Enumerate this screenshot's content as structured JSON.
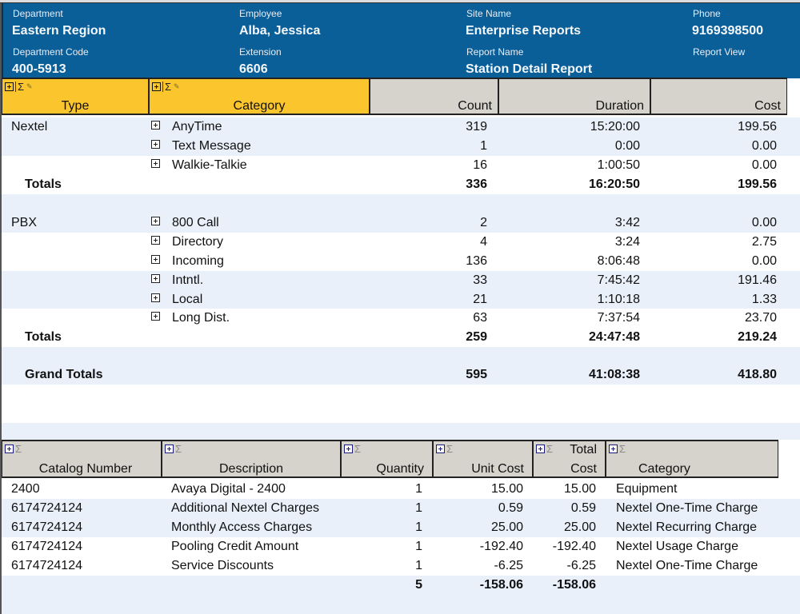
{
  "header": {
    "department_label": "Department",
    "department": "Eastern Region",
    "department_code_label": "Department Code",
    "department_code": "400-5913",
    "employee_label": "Employee",
    "employee": "Alba, Jessica",
    "extension_label": "Extension",
    "extension": "6606",
    "site_name_label": "Site Name",
    "site_name": "Enterprise Reports",
    "report_name_label": "Report Name",
    "report_name": "Station Detail Report",
    "phone_label": "Phone",
    "phone": "9169398500",
    "report_view_label": "Report View"
  },
  "summary": {
    "columns": [
      "Type",
      "Category",
      "Count",
      "Duration",
      "Cost"
    ],
    "groups": [
      {
        "type": "Nextel",
        "rows": [
          {
            "category": "AnyTime",
            "count": "319",
            "duration": "15:20:00",
            "cost": "199.56"
          },
          {
            "category": "Text Message",
            "count": "1",
            "duration": "0:00",
            "cost": "0.00"
          },
          {
            "category": "Walkie-Talkie",
            "count": "16",
            "duration": "1:00:50",
            "cost": "0.00"
          }
        ],
        "totals_label": "Totals",
        "totals": {
          "count": "336",
          "duration": "16:20:50",
          "cost": "199.56"
        }
      },
      {
        "type": "PBX",
        "rows": [
          {
            "category": "800 Call",
            "count": "2",
            "duration": "3:42",
            "cost": "0.00"
          },
          {
            "category": "Directory",
            "count": "4",
            "duration": "3:24",
            "cost": "2.75"
          },
          {
            "category": "Incoming",
            "count": "136",
            "duration": "8:06:48",
            "cost": "0.00"
          },
          {
            "category": "Intntl.",
            "count": "33",
            "duration": "7:45:42",
            "cost": "191.46"
          },
          {
            "category": "Local",
            "count": "21",
            "duration": "1:10:18",
            "cost": "1.33"
          },
          {
            "category": "Long Dist.",
            "count": "63",
            "duration": "7:37:54",
            "cost": "23.70"
          }
        ],
        "totals_label": "Totals",
        "totals": {
          "count": "259",
          "duration": "24:47:48",
          "cost": "219.24"
        }
      }
    ],
    "grand_totals_label": "Grand Totals",
    "grand_totals": {
      "count": "595",
      "duration": "41:08:38",
      "cost": "418.80"
    }
  },
  "catalog": {
    "columns": [
      "Catalog Number",
      "Description",
      "Quantity",
      "Unit Cost",
      "Total Cost",
      "Category"
    ],
    "total_cost_line1": "Total",
    "total_cost_line2": "Cost",
    "rows": [
      {
        "catalog_number": "2400",
        "description": "Avaya Digital - 2400",
        "quantity": "1",
        "unit_cost": "15.00",
        "total_cost": "15.00",
        "category": "Equipment"
      },
      {
        "catalog_number": "6174724124",
        "description": "Additional Nextel Charges",
        "quantity": "1",
        "unit_cost": "0.59",
        "total_cost": "0.59",
        "category": "Nextel One-Time Charge"
      },
      {
        "catalog_number": "6174724124",
        "description": "Monthly Access Charges",
        "quantity": "1",
        "unit_cost": "25.00",
        "total_cost": "25.00",
        "category": "Nextel Recurring Charge"
      },
      {
        "catalog_number": "6174724124",
        "description": "Pooling Credit Amount",
        "quantity": "1",
        "unit_cost": "-192.40",
        "total_cost": "-192.40",
        "category": "Nextel Usage Charge"
      },
      {
        "catalog_number": "6174724124",
        "description": "Service Discounts",
        "quantity": "1",
        "unit_cost": "-6.25",
        "total_cost": "-6.25",
        "category": "Nextel One-Time Charge"
      }
    ],
    "totals": {
      "quantity": "5",
      "unit_cost": "-158.06",
      "total_cost": "-158.06"
    }
  },
  "icons": {
    "expand": "plus-box-icon",
    "sum": "sigma-icon",
    "edit": "pencil-icon"
  }
}
